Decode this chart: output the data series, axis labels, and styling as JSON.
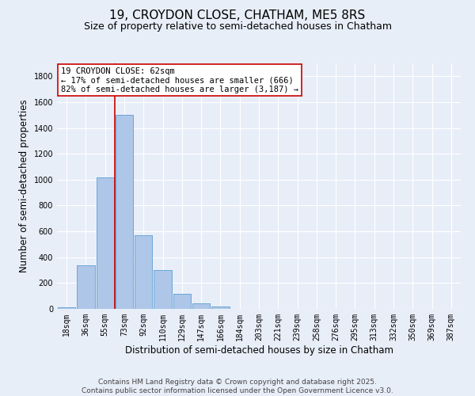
{
  "title": "19, CROYDON CLOSE, CHATHAM, ME5 8RS",
  "subtitle": "Size of property relative to semi-detached houses in Chatham",
  "xlabel": "Distribution of semi-detached houses by size in Chatham",
  "ylabel": "Number of semi-detached properties",
  "bar_labels": [
    "18sqm",
    "36sqm",
    "55sqm",
    "73sqm",
    "92sqm",
    "110sqm",
    "129sqm",
    "147sqm",
    "166sqm",
    "184sqm",
    "203sqm",
    "221sqm",
    "239sqm",
    "258sqm",
    "276sqm",
    "295sqm",
    "313sqm",
    "332sqm",
    "350sqm",
    "369sqm",
    "387sqm"
  ],
  "bar_values": [
    15,
    340,
    1020,
    1500,
    570,
    300,
    115,
    45,
    20,
    3,
    0,
    0,
    0,
    0,
    0,
    0,
    0,
    0,
    0,
    0,
    0
  ],
  "bar_color": "#aec6e8",
  "bar_edge_color": "#5a9fd4",
  "vline_color": "#cc0000",
  "ylim": [
    0,
    1900
  ],
  "yticks": [
    0,
    200,
    400,
    600,
    800,
    1000,
    1200,
    1400,
    1600,
    1800
  ],
  "annotation_title": "19 CROYDON CLOSE: 62sqm",
  "annotation_line1": "← 17% of semi-detached houses are smaller (666)",
  "annotation_line2": "82% of semi-detached houses are larger (3,187) →",
  "annotation_box_color": "#ffffff",
  "annotation_border_color": "#cc0000",
  "footer_line1": "Contains HM Land Registry data © Crown copyright and database right 2025.",
  "footer_line2": "Contains public sector information licensed under the Open Government Licence v3.0.",
  "background_color": "#e8eef8",
  "grid_color": "#ffffff",
  "title_fontsize": 11,
  "subtitle_fontsize": 9,
  "axis_label_fontsize": 8.5,
  "tick_fontsize": 7,
  "annotation_fontsize": 7.5,
  "footer_fontsize": 6.5
}
